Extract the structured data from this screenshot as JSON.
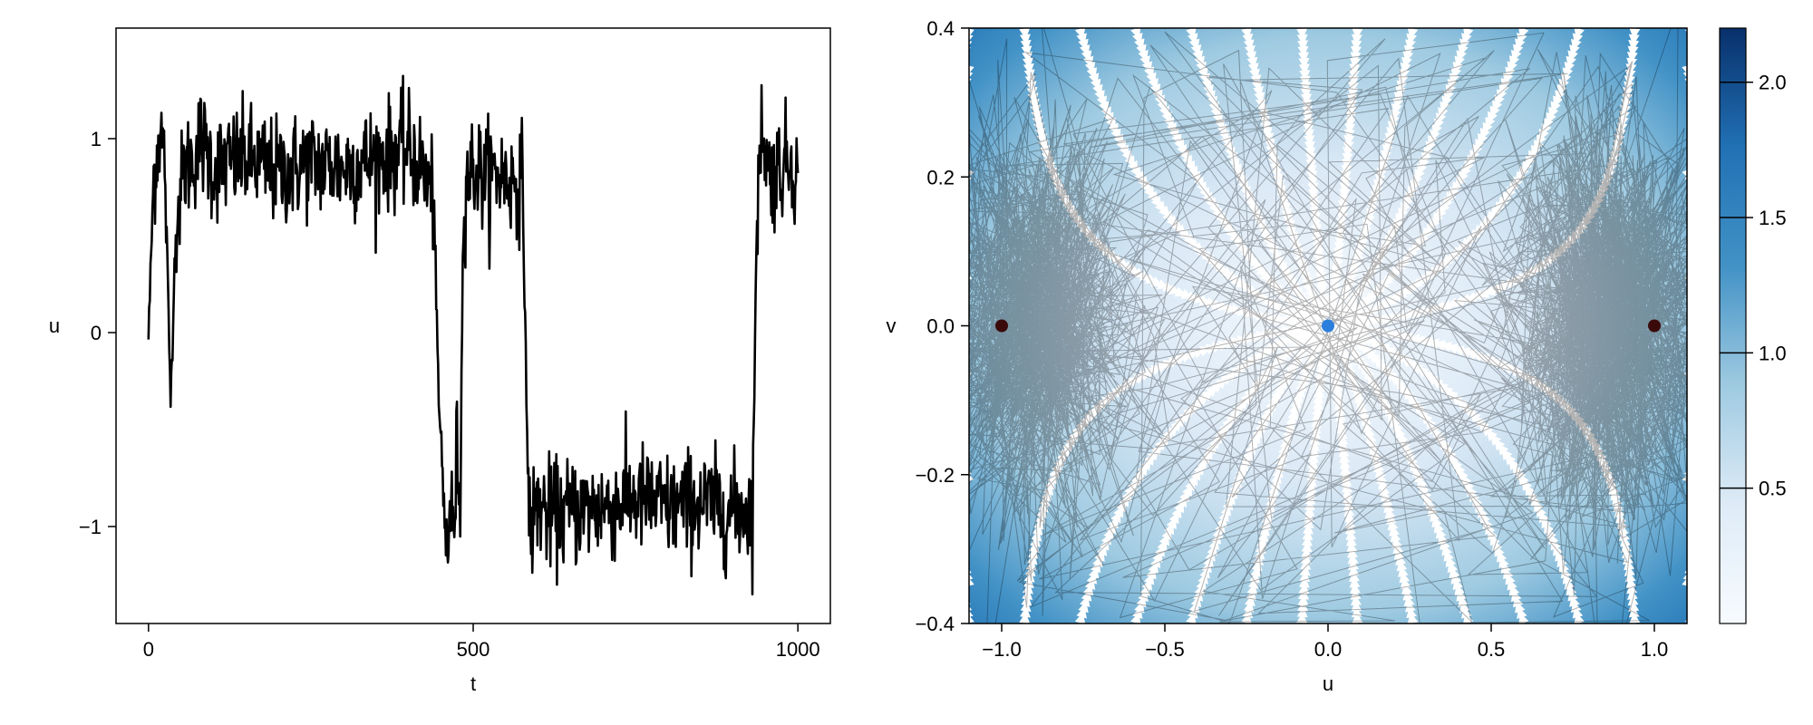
{
  "chart_data": [
    {
      "type": "line",
      "title": "",
      "xlabel": "t",
      "ylabel": "u",
      "xlim": [
        -50,
        1050
      ],
      "ylim": [
        -1.5,
        1.57
      ],
      "xticks": [
        0,
        500,
        1000
      ],
      "xtick_labels": [
        "0",
        "500",
        "1000"
      ],
      "yticks": [
        -1,
        0,
        1
      ],
      "ytick_labels": [
        "−1",
        "0",
        "1"
      ],
      "grid": false,
      "legend": "none",
      "colors": {
        "line": "#000000"
      },
      "series": [
        {
          "x": [
            0,
            8,
            18,
            25,
            34,
            42,
            55,
            70,
            80,
            100,
            150,
            200,
            250,
            300,
            350,
            400,
            420,
            440,
            446,
            450,
            455,
            460,
            465,
            470,
            475,
            480,
            485,
            490,
            500,
            520,
            540,
            560,
            575,
            580,
            585,
            590,
            600,
            620,
            650,
            700,
            750,
            800,
            850,
            900,
            925,
            930,
            935,
            940,
            945,
            955,
            970,
            990,
            1000
          ],
          "values": [
            -0.02,
            0.8,
            1.05,
            0.9,
            -0.35,
            0.55,
            0.85,
            0.9,
            1.0,
            0.85,
            0.9,
            0.82,
            0.88,
            0.85,
            0.9,
            0.95,
            0.85,
            0.7,
            -0.3,
            -0.55,
            -0.95,
            -1.1,
            -0.9,
            -1.05,
            -0.6,
            -0.85,
            0.65,
            0.8,
            0.85,
            0.8,
            0.82,
            0.78,
            0.8,
            0.1,
            -0.9,
            -1.0,
            -0.88,
            -0.95,
            -0.92,
            -0.9,
            -0.85,
            -0.9,
            -0.88,
            -0.92,
            -0.9,
            -0.95,
            0.2,
            0.9,
            1.1,
            0.8,
            0.85,
            0.9,
            0.8
          ]
        }
      ]
    },
    {
      "type": "heatmap",
      "title": "",
      "xlabel": "u",
      "ylabel": "v",
      "xlim": [
        -1.1,
        1.1
      ],
      "ylim": [
        -0.4,
        0.4
      ],
      "xticks": [
        -1.0,
        -0.5,
        0.0,
        0.5,
        1.0
      ],
      "xtick_labels": [
        "−1.0",
        "−0.5",
        "0.0",
        "0.5",
        "1.0"
      ],
      "yticks": [
        -0.4,
        -0.2,
        0.0,
        0.2,
        0.4
      ],
      "ytick_labels": [
        "−0.4",
        "−0.2",
        "0.0",
        "0.2",
        "0.4"
      ],
      "colorbar": {
        "range": [
          0.0,
          2.2
        ],
        "ticks": [
          0.5,
          1.0,
          1.5,
          2.0
        ],
        "tick_labels": [
          "0.5",
          "1.0",
          "1.5",
          "2.0"
        ],
        "colormap": "Blues"
      },
      "overlays": {
        "streamlines": "white",
        "trajectory_color": "#000000",
        "fixed_points": [
          {
            "u": -1.0,
            "v": 0.0,
            "color": "#3a0a0a"
          },
          {
            "u": 0.0,
            "v": 0.0,
            "color": "#2a7fdc"
          },
          {
            "u": 1.0,
            "v": 0.0,
            "color": "#3a0a0a"
          }
        ]
      }
    }
  ]
}
